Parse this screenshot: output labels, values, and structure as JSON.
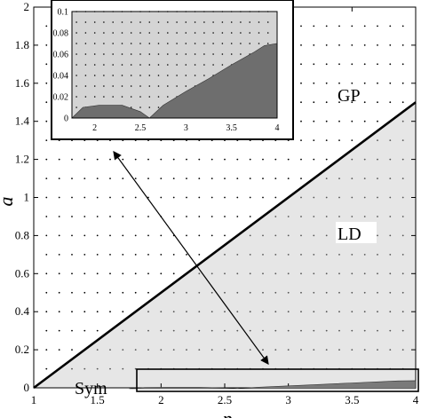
{
  "chart_data": {
    "type": "area",
    "xlabel": "p",
    "ylabel": "a",
    "xlim": [
      1,
      4
    ],
    "ylim": [
      0,
      2
    ],
    "xticks": [
      "1",
      "1.5",
      "2",
      "2.5",
      "3",
      "3.5",
      "4"
    ],
    "yticks": [
      "0",
      "0.2",
      "0.4",
      "0.6",
      "0.8",
      "1",
      "1.2",
      "1.4",
      "1.6",
      "1.8",
      "2"
    ],
    "grid": "dotted",
    "series": [
      {
        "name": "",
        "kind": "boundary_line",
        "x": [
          1,
          4
        ],
        "y": [
          0,
          1.5
        ]
      },
      {
        "name": "",
        "kind": "shaded_region_LD",
        "x": [
          1,
          4,
          4
        ],
        "y": [
          0,
          1.5,
          0
        ]
      },
      {
        "name": "",
        "kind": "symmetric_phase_region",
        "x": [
          1.75,
          1.87,
          2.05,
          2.3,
          2.5,
          2.6,
          2.75,
          3.0,
          3.25,
          3.5,
          3.75,
          3.86,
          4.0
        ],
        "y": [
          0,
          0.01,
          0.012,
          0.012,
          0.006,
          0,
          0.012,
          0.025,
          0.037,
          0.05,
          0.062,
          0.068,
          0.07
        ]
      }
    ],
    "annotations": [
      "GP",
      "LD",
      "Sym"
    ],
    "inset": {
      "xlim": [
        1.75,
        4
      ],
      "ylim": [
        0,
        0.1
      ],
      "xticks": [
        "2",
        "2.5",
        "3",
        "3.5",
        "4"
      ],
      "yticks": [
        "0",
        "0.02",
        "0.04",
        "0.06",
        "0.08",
        "0.1"
      ]
    }
  }
}
